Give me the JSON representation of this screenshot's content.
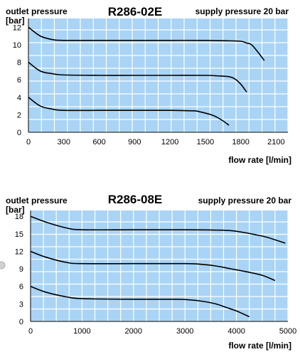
{
  "chart_data": [
    {
      "type": "line",
      "title": "R286-02E",
      "ylabel": "outlet pressure",
      "yunit": "[bar]",
      "xlabel": "flow rate [l/min]",
      "annotation": "supply pressure 20 bar",
      "xlim": [
        0,
        2200
      ],
      "ylim": [
        0,
        13
      ],
      "xticks": [
        0,
        300,
        600,
        900,
        1200,
        1500,
        1800,
        2100
      ],
      "yticks": [
        0,
        2,
        4,
        6,
        8,
        10,
        12
      ],
      "grid": true,
      "background": "#a9d4f5",
      "grid_color": "#ffffff",
      "line_color": "#000000",
      "series": [
        {
          "x": [
            0,
            100,
            200,
            300,
            600,
            900,
            1200,
            1500,
            1700,
            1800,
            1850,
            1900,
            2000
          ],
          "values": [
            12,
            11.0,
            10.6,
            10.5,
            10.5,
            10.5,
            10.5,
            10.5,
            10.45,
            10.4,
            10.2,
            9.9,
            8.2
          ]
        },
        {
          "x": [
            0,
            100,
            200,
            300,
            600,
            900,
            1200,
            1500,
            1600,
            1700,
            1750,
            1800,
            1850
          ],
          "values": [
            8,
            7.0,
            6.7,
            6.55,
            6.5,
            6.5,
            6.5,
            6.5,
            6.45,
            6.35,
            6.1,
            5.5,
            4.6
          ]
        },
        {
          "x": [
            0,
            100,
            200,
            300,
            600,
            900,
            1200,
            1400,
            1450,
            1550,
            1600,
            1650,
            1700
          ],
          "values": [
            4,
            3.0,
            2.65,
            2.5,
            2.5,
            2.5,
            2.5,
            2.45,
            2.35,
            2.0,
            1.7,
            1.3,
            0.8
          ]
        }
      ]
    },
    {
      "type": "line",
      "title": "R286-08E",
      "ylabel": "outlet pressure",
      "yunit": "[bar]",
      "xlabel": "flow rate [l/min]",
      "annotation": "supply pressure 20 bar",
      "xlim": [
        0,
        5000
      ],
      "ylim": [
        0,
        19
      ],
      "xticks": [
        0,
        1000,
        2000,
        3000,
        4000,
        5000
      ],
      "yticks": [
        0,
        3,
        6,
        9,
        12,
        15,
        18
      ],
      "grid": true,
      "background": "#a9d4f5",
      "grid_color": "#ffffff",
      "line_color": "#000000",
      "series": [
        {
          "x": [
            0,
            300,
            700,
            1000,
            2000,
            3000,
            3800,
            4100,
            4400,
            4600,
            4950
          ],
          "values": [
            18,
            17.0,
            16.0,
            15.7,
            15.7,
            15.7,
            15.6,
            15.3,
            14.8,
            14.4,
            13.4
          ]
        },
        {
          "x": [
            0,
            300,
            700,
            1000,
            2000,
            3000,
            3300,
            3600,
            3900,
            4200,
            4500,
            4750
          ],
          "values": [
            12,
            11.0,
            10.1,
            9.9,
            9.9,
            9.9,
            9.8,
            9.5,
            9.0,
            8.5,
            7.9,
            7.0
          ]
        },
        {
          "x": [
            0,
            300,
            700,
            1000,
            2000,
            2800,
            3000,
            3300,
            3600,
            3800,
            4000,
            4250
          ],
          "values": [
            6,
            5.0,
            4.2,
            3.9,
            3.8,
            3.8,
            3.75,
            3.5,
            3.0,
            2.4,
            1.8,
            0.8
          ]
        }
      ]
    }
  ]
}
